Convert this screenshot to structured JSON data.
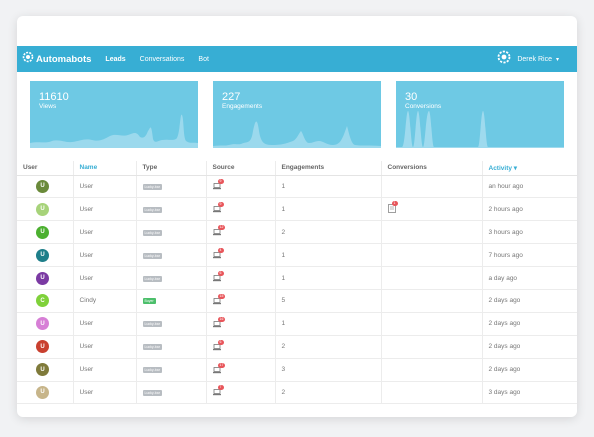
{
  "nav": {
    "brand": "Automabots",
    "items": [
      "Leads",
      "Conversations",
      "Bot"
    ],
    "active": "Leads",
    "user_name": "Derek Rice",
    "caret": "▾"
  },
  "stats": [
    {
      "value": "11610",
      "label": "Views"
    },
    {
      "value": "227",
      "label": "Engagements"
    },
    {
      "value": "30",
      "label": "Conversions"
    }
  ],
  "table": {
    "headers": [
      "User",
      "Name",
      "Type",
      "Source",
      "Engagements",
      "Conversions",
      "Activity ▾"
    ],
    "rows": [
      {
        "initial": "U",
        "color": "#6a8a3a",
        "name": "User",
        "type": "Lucky-bar",
        "type_color": "#b8bdc2",
        "source_count": "9",
        "engagements": "1",
        "conversion": "",
        "activity": "an hour ago"
      },
      {
        "initial": "U",
        "color": "#a7d37a",
        "name": "User",
        "type": "Lucky-bar",
        "type_color": "#b8bdc2",
        "source_count": "9",
        "engagements": "1",
        "conversion": "1",
        "activity": "2 hours ago"
      },
      {
        "initial": "U",
        "color": "#4cb030",
        "name": "User",
        "type": "Lucky-bar",
        "type_color": "#b8bdc2",
        "source_count": "12",
        "engagements": "2",
        "conversion": "",
        "activity": "3 hours ago"
      },
      {
        "initial": "U",
        "color": "#1f7f8a",
        "name": "User",
        "type": "Lucky-bar",
        "type_color": "#b8bdc2",
        "source_count": "4",
        "engagements": "1",
        "conversion": "",
        "activity": "7 hours ago"
      },
      {
        "initial": "U",
        "color": "#7b3aa3",
        "name": "User",
        "type": "Lucky-bar",
        "type_color": "#b8bdc2",
        "source_count": "6",
        "engagements": "1",
        "conversion": "",
        "activity": "a day ago"
      },
      {
        "initial": "C",
        "color": "#7fd13a",
        "name": "Cindy",
        "type": "Buyer",
        "type_color": "#4cbf6b",
        "source_count": "15",
        "engagements": "5",
        "conversion": "",
        "activity": "2 days ago"
      },
      {
        "initial": "U",
        "color": "#d77fd6",
        "name": "User",
        "type": "Lucky-bar",
        "type_color": "#b8bdc2",
        "source_count": "16",
        "engagements": "1",
        "conversion": "",
        "activity": "2 days ago"
      },
      {
        "initial": "U",
        "color": "#c9402f",
        "name": "User",
        "type": "Lucky-bar",
        "type_color": "#b8bdc2",
        "source_count": "6",
        "engagements": "2",
        "conversion": "",
        "activity": "2 days ago"
      },
      {
        "initial": "U",
        "color": "#7f7a3a",
        "name": "User",
        "type": "Lucky-bar",
        "type_color": "#b8bdc2",
        "source_count": "17",
        "engagements": "3",
        "conversion": "",
        "activity": "2 days ago"
      },
      {
        "initial": "U",
        "color": "#c7b58a",
        "name": "User",
        "type": "Lucky-bar",
        "type_color": "#b8bdc2",
        "source_count": "7",
        "engagements": "2",
        "conversion": "",
        "activity": "3 days ago"
      }
    ]
  }
}
